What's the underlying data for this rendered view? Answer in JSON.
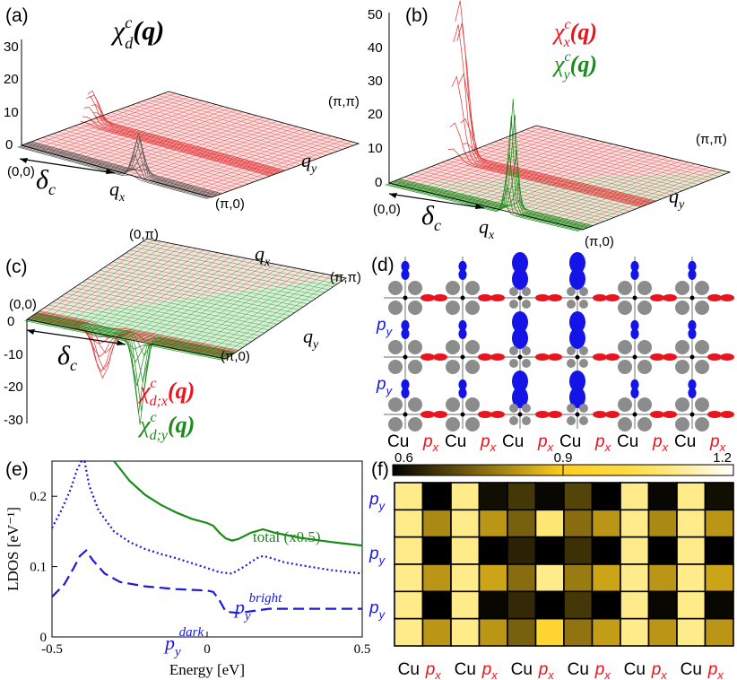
{
  "colors": {
    "red": "#e8141e",
    "green": "#1a8a1a",
    "blue": "#1a1adc",
    "grid_red": "#e03030",
    "fill_red": "#fbdede",
    "fill_green": "#d6efd6",
    "atom_gray": "#8c8c8c",
    "orb_red": "#e8141e",
    "orb_blue": "#1414e6"
  },
  "panel_a": {
    "label": "(a)",
    "title": "χ",
    "sup": "c",
    "sub": "d",
    "arg": "(q)",
    "z_ticks": [
      "30",
      "20",
      "10",
      "0"
    ],
    "corner_origin": "(0,0)",
    "corner_x": "(π,0)",
    "corner_far": "(π,π)",
    "axis_x": "q",
    "axis_x_sub": "x",
    "axis_y": "q",
    "axis_y_sub": "y",
    "delta": "δ",
    "delta_sub": "c"
  },
  "panel_b": {
    "label": "(b)",
    "legend": [
      {
        "sym": "χ",
        "sup": "c",
        "sub": "x",
        "arg": "(q)",
        "color": "red"
      },
      {
        "sym": "χ",
        "sup": "c",
        "sub": "y",
        "arg": "(q)",
        "color": "green"
      }
    ],
    "z_ticks": [
      "50",
      "40",
      "30",
      "20",
      "10",
      "0"
    ],
    "corner_origin": "(0,0)",
    "corner_x": "(π,0)",
    "corner_far": "(π,π)",
    "axis_x": "q",
    "axis_x_sub": "x",
    "axis_y": "q",
    "axis_y_sub": "y",
    "delta": "δ",
    "delta_sub": "c"
  },
  "panel_c": {
    "label": "(c)",
    "legend": [
      {
        "sym": "χ",
        "sup": "c",
        "sub": "d;x",
        "arg": "(q)",
        "color": "red"
      },
      {
        "sym": "χ",
        "sup": "c",
        "sub": "d;y",
        "arg": "(q)",
        "color": "green"
      }
    ],
    "z_ticks": [
      "0",
      "-10",
      "-20",
      "-30"
    ],
    "corner_origin": "(0,0)",
    "corner_top": "(0,π)",
    "corner_far": "(π,π)",
    "corner_x": "(π,0)",
    "axis_x": "q",
    "axis_x_sub": "x",
    "axis_y": "q",
    "axis_y_sub": "y",
    "delta": "δ",
    "delta_sub": "c"
  },
  "panel_d": {
    "label": "(d)",
    "row_labels": [
      {
        "p": "p",
        "sub": "y"
      },
      {
        "p": "p",
        "sub": "y"
      }
    ],
    "col_labels": [
      "Cu",
      "p",
      "Cu",
      "p",
      "Cu",
      "p",
      "Cu",
      "p",
      "Cu",
      "p",
      "Cu",
      "p"
    ],
    "col_sub": "x",
    "stripe_blue_sizes": [
      1,
      1,
      3,
      3,
      1,
      1
    ]
  },
  "chart_data": [
    {
      "type": "line",
      "panel": "(e)",
      "xlabel": "Energy [eV]",
      "ylabel": "LDOS [eV⁻¹]",
      "xlim": [
        -0.5,
        0.5
      ],
      "ylim": [
        0,
        0.25
      ],
      "xticks": [
        "-0.5",
        "0",
        "0.5"
      ],
      "yticks": [
        "0",
        "0.1",
        "0.2"
      ],
      "series": [
        {
          "name": "total (x0.5)",
          "style": "solid",
          "color": "#1a8a1a",
          "x": [
            -0.3,
            -0.25,
            -0.2,
            -0.15,
            -0.1,
            -0.05,
            0,
            0.02,
            0.04,
            0.06,
            0.08,
            0.1,
            0.14,
            0.18,
            0.22,
            0.3,
            0.4,
            0.5
          ],
          "y": [
            0.25,
            0.222,
            0.202,
            0.188,
            0.177,
            0.168,
            0.162,
            0.158,
            0.148,
            0.14,
            0.137,
            0.139,
            0.148,
            0.153,
            0.148,
            0.141,
            0.135,
            0.13
          ]
        },
        {
          "name": "p_y^bright",
          "style": "dotted",
          "color": "#1a1adc",
          "x": [
            -0.5,
            -0.47,
            -0.44,
            -0.42,
            -0.405,
            -0.395,
            -0.38,
            -0.35,
            -0.3,
            -0.25,
            -0.2,
            -0.15,
            -0.1,
            -0.05,
            0,
            0.04,
            0.08,
            0.12,
            0.16,
            0.18,
            0.2,
            0.25,
            0.3,
            0.4,
            0.5
          ],
          "y": [
            0.155,
            0.18,
            0.21,
            0.237,
            0.25,
            0.25,
            0.215,
            0.18,
            0.15,
            0.135,
            0.125,
            0.118,
            0.112,
            0.105,
            0.098,
            0.092,
            0.09,
            0.1,
            0.112,
            0.115,
            0.113,
            0.106,
            0.102,
            0.095,
            0.09
          ]
        },
        {
          "name": "p_y^dark",
          "style": "dashed",
          "color": "#1a1adc",
          "x": [
            -0.5,
            -0.46,
            -0.43,
            -0.41,
            -0.39,
            -0.37,
            -0.33,
            -0.28,
            -0.2,
            -0.1,
            0,
            0.02,
            0.04,
            0.06,
            0.1,
            0.15,
            0.2,
            0.3,
            0.5
          ],
          "y": [
            0.057,
            0.075,
            0.098,
            0.115,
            0.123,
            0.11,
            0.09,
            0.078,
            0.072,
            0.068,
            0.066,
            0.064,
            0.052,
            0.036,
            0.034,
            0.037,
            0.04,
            0.04,
            0.04
          ]
        }
      ],
      "annotations": [
        {
          "text": "total (x0.5)",
          "color": "green"
        },
        {
          "text": "p",
          "sub": "y",
          "sup": "bright",
          "color": "blue"
        },
        {
          "text": "p",
          "sub": "y",
          "sup": "dark",
          "color": "blue"
        }
      ]
    },
    {
      "type": "heatmap",
      "panel": "(f)",
      "colorbar_min": 0.6,
      "colorbar_max": 1.2,
      "colorbar_ticks": [
        "0.6",
        "0.9",
        "1.2"
      ],
      "col_labels": [
        "Cu",
        "p",
        "Cu",
        "p",
        "Cu",
        "p",
        "Cu",
        "p",
        "Cu",
        "p",
        "Cu",
        "p"
      ],
      "col_sub": "x",
      "row_labels": [
        {
          "p": "p",
          "sub": "y"
        },
        {
          "p": "p",
          "sub": "y"
        },
        {
          "p": "p",
          "sub": "y"
        }
      ],
      "values": [
        [
          1.1,
          0.6,
          1.1,
          0.62,
          0.68,
          0.61,
          0.7,
          0.6,
          1.1,
          0.61,
          1.1,
          0.62
        ],
        [
          1.1,
          0.8,
          1.1,
          0.82,
          0.74,
          1.08,
          0.76,
          0.82,
          1.1,
          0.8,
          1.1,
          0.82
        ],
        [
          1.1,
          0.6,
          1.1,
          0.6,
          0.65,
          0.6,
          0.67,
          0.6,
          1.1,
          0.6,
          1.1,
          0.6
        ],
        [
          1.1,
          0.82,
          1.1,
          0.84,
          0.76,
          1.1,
          0.78,
          0.84,
          1.1,
          0.82,
          1.1,
          0.84
        ],
        [
          1.1,
          0.6,
          1.1,
          0.61,
          0.66,
          0.6,
          0.68,
          0.6,
          1.1,
          0.61,
          1.1,
          0.61
        ],
        [
          1.1,
          0.82,
          1.1,
          0.82,
          0.74,
          0.96,
          0.77,
          0.83,
          1.1,
          0.82,
          1.1,
          0.82
        ]
      ]
    }
  ]
}
